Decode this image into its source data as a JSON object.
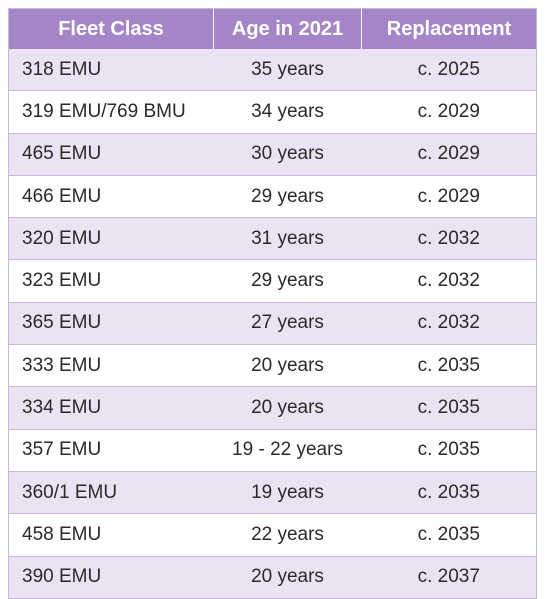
{
  "table": {
    "headers": [
      "Fleet Class",
      "Age in 2021",
      "Replacement"
    ],
    "rows": [
      [
        "318 EMU",
        "35 years",
        "c. 2025"
      ],
      [
        "319 EMU/769 BMU",
        "34 years",
        "c. 2029"
      ],
      [
        "465 EMU",
        "30 years",
        "c. 2029"
      ],
      [
        "466 EMU",
        "29 years",
        "c. 2029"
      ],
      [
        "320 EMU",
        "31 years",
        "c. 2032"
      ],
      [
        "323 EMU",
        "29 years",
        "c. 2032"
      ],
      [
        "365 EMU",
        "27 years",
        "c. 2032"
      ],
      [
        "333 EMU",
        "20 years",
        "c. 2035"
      ],
      [
        "334 EMU",
        "20 years",
        "c. 2035"
      ],
      [
        "357 EMU",
        "19 - 22 years",
        "c. 2035"
      ],
      [
        "360/1 EMU",
        "19 years",
        "c. 2035"
      ],
      [
        "458 EMU",
        "22 years",
        "c. 2035"
      ],
      [
        "390 EMU",
        "20 years",
        "c. 2037"
      ]
    ]
  },
  "colors": {
    "header_bg": "#a486c8",
    "row_alt_bg": "#ebe3f3",
    "border": "#c9b8dc"
  }
}
